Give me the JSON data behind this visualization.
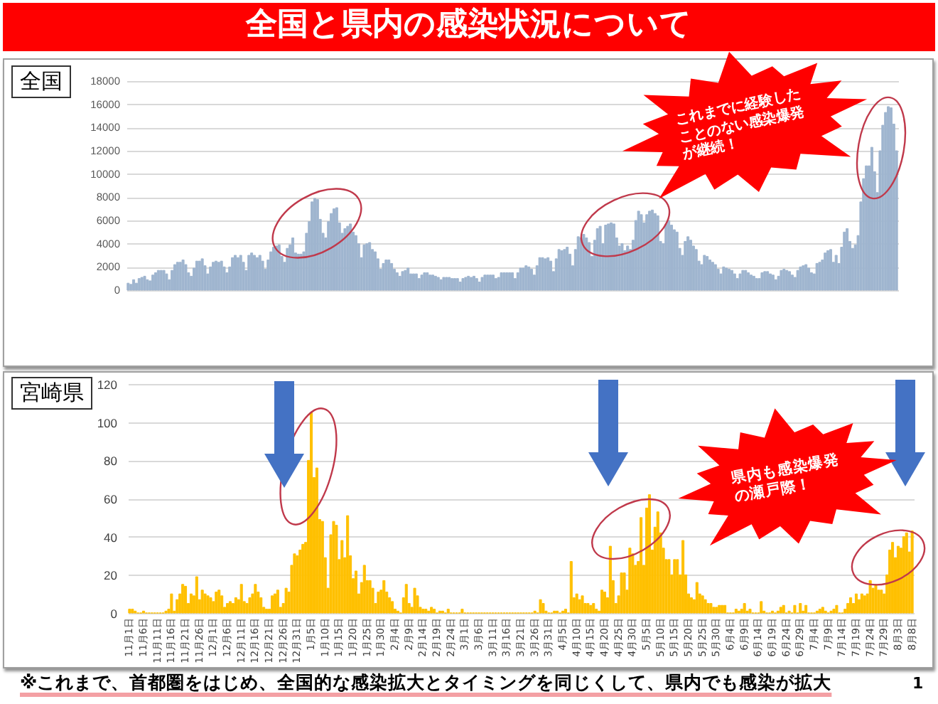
{
  "chart_data": [
    {
      "type": "bar",
      "title": "全国と県内の感染状況について",
      "subtitle": "全国",
      "categories": [
        null,
        null,
        null,
        null,
        null,
        null,
        null,
        null,
        null,
        null,
        null,
        null,
        null,
        null,
        null,
        null,
        null,
        null,
        null,
        null,
        null,
        null,
        null,
        null,
        null,
        null,
        null,
        null,
        null,
        null,
        null,
        null,
        null,
        null,
        null,
        null,
        null,
        null,
        null,
        null,
        null,
        null,
        null,
        null,
        null,
        null,
        null,
        null,
        null,
        null,
        null,
        null,
        null,
        null,
        null,
        null,
        null,
        null,
        null,
        null,
        null,
        null,
        null,
        null,
        null,
        null,
        null,
        null,
        null,
        null,
        null,
        null,
        null,
        null,
        null,
        null,
        null,
        null,
        null,
        null,
        null,
        null,
        null,
        null,
        null,
        null,
        null,
        null,
        null,
        null,
        null,
        null,
        null,
        null,
        null,
        null,
        null,
        null,
        null,
        null,
        null,
        null,
        null,
        null,
        null,
        null,
        null,
        null,
        null,
        null,
        null,
        null,
        null,
        null,
        null,
        null,
        null,
        null,
        null,
        null,
        null,
        null,
        null,
        null,
        null,
        null,
        null,
        null,
        null,
        null,
        null,
        null,
        null,
        null,
        null,
        null,
        null,
        null,
        null,
        null,
        null,
        null,
        null,
        null,
        null,
        null,
        null,
        null,
        null,
        null,
        null,
        null,
        null,
        null,
        null,
        null,
        null,
        null,
        null,
        null,
        null,
        null,
        null,
        null,
        null,
        null,
        null,
        null,
        null,
        null,
        null,
        null,
        null,
        null,
        null,
        null,
        null,
        null,
        null,
        null,
        null,
        null,
        null,
        null,
        null,
        null,
        null,
        null,
        null,
        null,
        null,
        null,
        null,
        null,
        null,
        null,
        null,
        null,
        null,
        null,
        null,
        null,
        null,
        null,
        null,
        null,
        null,
        null,
        null,
        null,
        null,
        null,
        null,
        null,
        null,
        null,
        null,
        null,
        null,
        null,
        null,
        null,
        null,
        null,
        null,
        null,
        null,
        null,
        null,
        null,
        null,
        null,
        null,
        null,
        null,
        null,
        null,
        null,
        null,
        null,
        null,
        null,
        null,
        null,
        null,
        null,
        null,
        null,
        null,
        null,
        null,
        null,
        null,
        null,
        null,
        null,
        null,
        null,
        null,
        null,
        null,
        null,
        null,
        null,
        null,
        null,
        null,
        null,
        null,
        null,
        null,
        null,
        null,
        null,
        null,
        null,
        null,
        null,
        null,
        null,
        null
      ],
      "values": [
        600,
        500,
        900,
        600,
        1000,
        1100,
        1200,
        900,
        800,
        1300,
        1500,
        1700,
        1700,
        1700,
        1400,
        900,
        1700,
        2200,
        2400,
        2400,
        2600,
        2200,
        1500,
        1200,
        1900,
        2500,
        2500,
        2700,
        2100,
        1400,
        2000,
        2400,
        2500,
        2400,
        2500,
        2000,
        1500,
        2000,
        2800,
        3000,
        2800,
        3000,
        2400,
        1700,
        3000,
        3200,
        3000,
        2800,
        3000,
        2500,
        1800,
        2600,
        3300,
        3700,
        3800,
        3900,
        2900,
        2400,
        3600,
        3900,
        4500,
        3200,
        3100,
        3100,
        3300,
        4900,
        5900,
        7600,
        7900,
        7800,
        6100,
        4900,
        4500,
        5900,
        6600,
        7000,
        7100,
        5800,
        4900,
        5300,
        5500,
        5700,
        5000,
        4700,
        4000,
        2800,
        3900,
        4000,
        4100,
        3500,
        3300,
        2700,
        1800,
        2300,
        2600,
        2600,
        2300,
        1800,
        1500,
        1200,
        1600,
        1700,
        1900,
        1400,
        1400,
        1400,
        1000,
        1300,
        1500,
        1500,
        1300,
        1300,
        1200,
        1100,
        900,
        1100,
        1100,
        1100,
        1000,
        1000,
        1000,
        700,
        1000,
        1100,
        1200,
        1100,
        1200,
        1000,
        700,
        1100,
        1300,
        1300,
        1300,
        1300,
        1000,
        1100,
        1500,
        1500,
        1500,
        1500,
        1500,
        1000,
        1500,
        1900,
        1900,
        2100,
        2000,
        1800,
        1300,
        2100,
        2800,
        2800,
        2700,
        2800,
        2500,
        1600,
        2700,
        3500,
        3400,
        3500,
        3700,
        3100,
        2100,
        3500,
        4600,
        4500,
        4800,
        4500,
        4100,
        2900,
        4300,
        5300,
        5500,
        4000,
        5600,
        5700,
        5800,
        5700,
        4500,
        3800,
        4000,
        3400,
        3800,
        3500,
        4300,
        6000,
        6800,
        6500,
        5800,
        6500,
        6800,
        6900,
        6600,
        6400,
        4200,
        4000,
        5700,
        6000,
        5600,
        5200,
        5000,
        3600,
        3000,
        4200,
        4600,
        4300,
        3800,
        3500,
        2500,
        2200,
        3000,
        2900,
        2600,
        2400,
        2200,
        1800,
        1400,
        2000,
        1900,
        1800,
        1700,
        1400,
        1000,
        1400,
        1700,
        1700,
        1500,
        1300,
        1200,
        1000,
        1000,
        1500,
        1600,
        1600,
        1400,
        1300,
        900,
        1200,
        1700,
        1800,
        1700,
        1600,
        1300,
        1100,
        1700,
        2000,
        2100,
        2200,
        1900,
        1500,
        1400,
        2300,
        2400,
        2600,
        3200,
        3400,
        3500,
        2400,
        3000,
        2300,
        3700,
        5000,
        5300,
        4200,
        3600,
        3900,
        4700,
        7600,
        9600,
        10700,
        10700,
        12300,
        10200,
        8400,
        12000,
        14200,
        15300,
        15800,
        15700,
        14300,
        12000
      ],
      "color": "#9fb5cf",
      "ylim": [
        0,
        18000
      ],
      "yticks": [
        0,
        2000,
        4000,
        6000,
        8000,
        10000,
        12000,
        14000,
        16000,
        18000
      ],
      "grid": "y",
      "tick_labels": "y",
      "annotations": [
        "これまでに経験したことのない感染爆発が継続！"
      ]
    },
    {
      "type": "bar",
      "title": "宮崎県",
      "categories": [
        "11月1日",
        null,
        null,
        null,
        null,
        "11月6日",
        null,
        null,
        null,
        null,
        "11月11日",
        null,
        null,
        null,
        null,
        "11月16日",
        null,
        null,
        null,
        null,
        "11月21日",
        null,
        null,
        null,
        null,
        "11月26日",
        null,
        null,
        null,
        null,
        "12月1日",
        null,
        null,
        null,
        null,
        "12月6日",
        null,
        null,
        null,
        null,
        "12月11日",
        null,
        null,
        null,
        null,
        "12月16日",
        null,
        null,
        null,
        null,
        "12月21日",
        null,
        null,
        null,
        null,
        "12月26日",
        null,
        null,
        null,
        null,
        "12月31日",
        null,
        null,
        null,
        null,
        "1月5日",
        null,
        null,
        null,
        null,
        "1月10日",
        null,
        null,
        null,
        null,
        "1月15日",
        null,
        null,
        null,
        null,
        "1月20日",
        null,
        null,
        null,
        null,
        "1月25日",
        null,
        null,
        null,
        null,
        "1月30日",
        null,
        null,
        null,
        null,
        "2月4日",
        null,
        null,
        null,
        null,
        "2月9日",
        null,
        null,
        null,
        null,
        "2月14日",
        null,
        null,
        null,
        null,
        "2月19日",
        null,
        null,
        null,
        null,
        "2月24日",
        null,
        null,
        null,
        null,
        "3月1日",
        null,
        null,
        null,
        null,
        "3月6日",
        null,
        null,
        null,
        null,
        "3月11日",
        null,
        null,
        null,
        null,
        "3月16日",
        null,
        null,
        null,
        null,
        "3月21日",
        null,
        null,
        null,
        null,
        "3月26日",
        null,
        null,
        null,
        null,
        "3月31日",
        null,
        null,
        null,
        null,
        "4月5日",
        null,
        null,
        null,
        null,
        "4月10日",
        null,
        null,
        null,
        null,
        "4月15日",
        null,
        null,
        null,
        null,
        "4月20日",
        null,
        null,
        null,
        null,
        "4月25日",
        null,
        null,
        null,
        null,
        "4月30日",
        null,
        null,
        null,
        null,
        "5月5日",
        null,
        null,
        null,
        null,
        "5月10日",
        null,
        null,
        null,
        null,
        "5月15日",
        null,
        null,
        null,
        null,
        "5月20日",
        null,
        null,
        null,
        null,
        "5月25日",
        null,
        null,
        null,
        null,
        "5月30日",
        null,
        null,
        null,
        null,
        "6月4日",
        null,
        null,
        null,
        null,
        "6月9日",
        null,
        null,
        null,
        null,
        "6月14日",
        null,
        null,
        null,
        null,
        "6月19日",
        null,
        null,
        null,
        null,
        "6月24日",
        null,
        null,
        null,
        null,
        "6月29日",
        null,
        null,
        null,
        null,
        "7月4日",
        null,
        null,
        null,
        null,
        "7月9日",
        null,
        null,
        null,
        null,
        "7月14日",
        null,
        null,
        null,
        null,
        "7月19日",
        null,
        null,
        null,
        null,
        "7月24日",
        null,
        null,
        null,
        null,
        "7月29日",
        null,
        null,
        null,
        null,
        "8月3日",
        null,
        null,
        null,
        null,
        "8月8日"
      ],
      "values": [
        2,
        2,
        1,
        0,
        0,
        1,
        0,
        0,
        0,
        0,
        0,
        0,
        0,
        1,
        2,
        10,
        1,
        7,
        10,
        15,
        14,
        5,
        10,
        9,
        19,
        7,
        12,
        10,
        9,
        8,
        6,
        11,
        12,
        9,
        3,
        5,
        6,
        5,
        8,
        7,
        15,
        6,
        5,
        8,
        10,
        15,
        11,
        8,
        3,
        2,
        2,
        9,
        10,
        12,
        3,
        5,
        13,
        11,
        25,
        31,
        30,
        33,
        36,
        37,
        80,
        105,
        71,
        76,
        49,
        48,
        29,
        13,
        41,
        48,
        46,
        28,
        38,
        29,
        51,
        30,
        18,
        22,
        10,
        16,
        25,
        17,
        17,
        13,
        5,
        11,
        12,
        17,
        11,
        8,
        6,
        2,
        1,
        0,
        8,
        15,
        5,
        3,
        13,
        9,
        3,
        2,
        2,
        1,
        3,
        2,
        0,
        1,
        1,
        0,
        2,
        0,
        0,
        0,
        0,
        2,
        0,
        0,
        0,
        0,
        0,
        0,
        0,
        0,
        0,
        0,
        0,
        0,
        0,
        0,
        0,
        0,
        0,
        0,
        0,
        0,
        0,
        0,
        0,
        0,
        0,
        1,
        0,
        7,
        5,
        1,
        0,
        0,
        1,
        1,
        0,
        1,
        2,
        0,
        27,
        8,
        10,
        7,
        9,
        5,
        5,
        4,
        5,
        2,
        1,
        12,
        11,
        8,
        35,
        17,
        5,
        9,
        21,
        21,
        12,
        34,
        31,
        25,
        27,
        50,
        25,
        55,
        62,
        33,
        45,
        53,
        42,
        34,
        28,
        28,
        20,
        28,
        28,
        20,
        38,
        20,
        10,
        8,
        7,
        16,
        10,
        9,
        7,
        5,
        5,
        3,
        3,
        4,
        4,
        4,
        0,
        0,
        0,
        2,
        1,
        2,
        5,
        1,
        2,
        0,
        0,
        0,
        6,
        1,
        0,
        0,
        1,
        0,
        1,
        3,
        4,
        0,
        1,
        0,
        4,
        0,
        5,
        1,
        4,
        0,
        0,
        0,
        1,
        2,
        3,
        1,
        0,
        1,
        2,
        4,
        0,
        0,
        2,
        5,
        8,
        5,
        10,
        7,
        10,
        9,
        10,
        17,
        13,
        15,
        12,
        12,
        10,
        20,
        33,
        37,
        29,
        35,
        34,
        40,
        42,
        32,
        43
      ],
      "color": "#ffc000",
      "ylim": [
        0,
        120
      ],
      "yticks": [
        0,
        20,
        40,
        60,
        80,
        100,
        120
      ],
      "grid": "y",
      "annotations": [
        "県内も感染爆発の瀬戸際！",
        "※これまで、首都圏をはじめ、全国的な感染拡大とタイミングを同じくして、県内でも感染が拡大",
        "1"
      ]
    }
  ]
}
